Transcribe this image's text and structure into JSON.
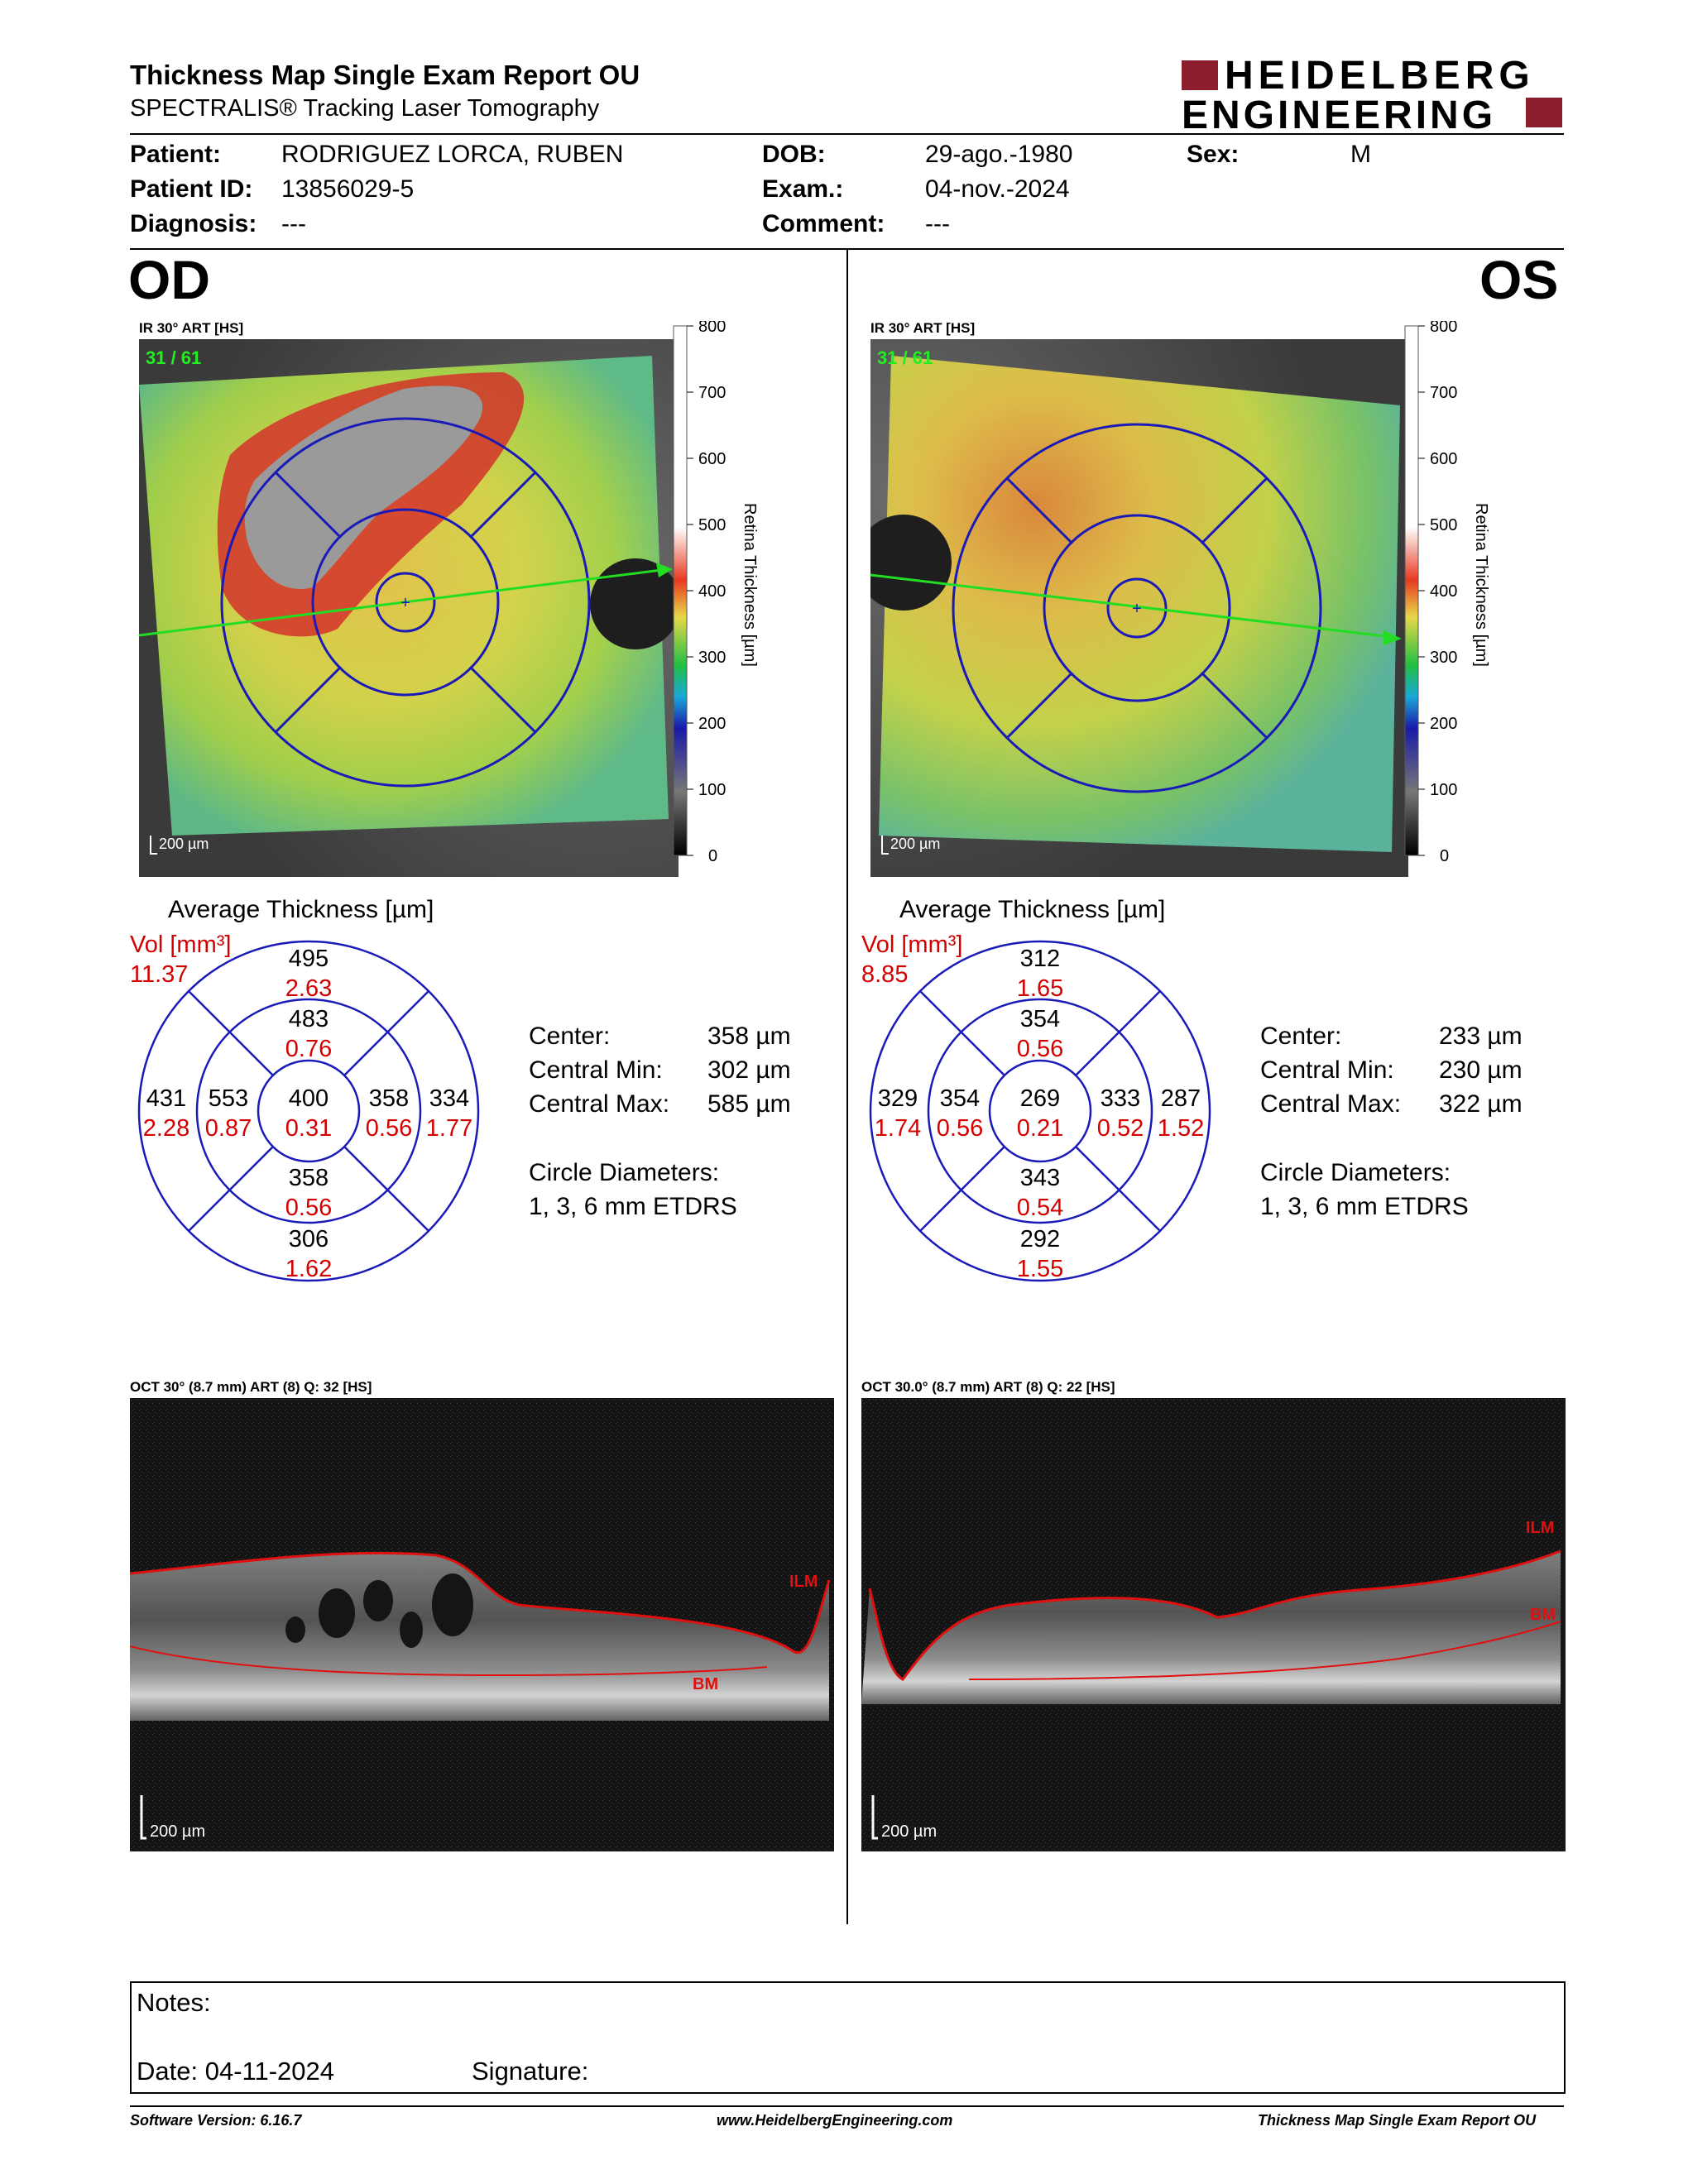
{
  "header": {
    "title": "Thickness Map Single Exam Report OU",
    "subtitle": "SPECTRALIS® Tracking Laser Tomography",
    "logo_line1": "HEIDELBERG",
    "logo_line2": "ENGINEERING"
  },
  "patient": {
    "patient_label": "Patient:",
    "patient_value": "RODRIGUEZ LORCA, RUBEN",
    "id_label": "Patient ID:",
    "id_value": "13856029-5",
    "diagnosis_label": "Diagnosis:",
    "diagnosis_value": "---",
    "dob_label": "DOB:",
    "dob_value": "29-ago.-1980",
    "exam_label": "Exam.:",
    "exam_value": "04-nov.-2024",
    "comment_label": "Comment:",
    "comment_value": "---",
    "sex_label": "Sex:",
    "sex_value": "M"
  },
  "colorbar": {
    "label": "Retina Thickness [µm]",
    "ticks": [
      "800",
      "700",
      "600",
      "500",
      "400",
      "300",
      "200",
      "100",
      "0"
    ]
  },
  "od": {
    "eye": "OD",
    "ir_caption": "IR 30° ART [HS]",
    "frame_counter": "31 / 61",
    "scale": "200 µm",
    "avg_title": "Average Thickness [µm]",
    "vol_label": "Vol [mm³]",
    "vol_total": "11.37",
    "etdrs": {
      "outer_sup": {
        "t": "495",
        "v": "2.63"
      },
      "inner_sup": {
        "t": "483",
        "v": "0.76"
      },
      "outer_left": {
        "t": "431",
        "v": "2.28"
      },
      "inner_left": {
        "t": "553",
        "v": "0.87"
      },
      "center": {
        "t": "400",
        "v": "0.31"
      },
      "inner_right": {
        "t": "358",
        "v": "0.56"
      },
      "outer_right": {
        "t": "334",
        "v": "1.77"
      },
      "inner_inf": {
        "t": "358",
        "v": "0.56"
      },
      "outer_inf": {
        "t": "306",
        "v": "1.62"
      }
    },
    "center_label": "Center:",
    "center_value": "358 µm",
    "cmin_label": "Central Min:",
    "cmin_value": "302 µm",
    "cmax_label": "Central Max:",
    "cmax_value": "585 µm",
    "circle_label": "Circle Diameters:",
    "circle_value": "1, 3, 6 mm ETDRS",
    "oct_caption": "OCT 30° (8.7 mm) ART (8) Q: 32 [HS]",
    "ilm": "ILM",
    "bm": "BM",
    "oct_scale": "200 µm"
  },
  "os": {
    "eye": "OS",
    "ir_caption": "IR 30° ART [HS]",
    "frame_counter": "31 / 61",
    "scale": "200 µm",
    "avg_title": "Average Thickness [µm]",
    "vol_label": "Vol [mm³]",
    "vol_total": "8.85",
    "etdrs": {
      "outer_sup": {
        "t": "312",
        "v": "1.65"
      },
      "inner_sup": {
        "t": "354",
        "v": "0.56"
      },
      "outer_left": {
        "t": "329",
        "v": "1.74"
      },
      "inner_left": {
        "t": "354",
        "v": "0.56"
      },
      "center": {
        "t": "269",
        "v": "0.21"
      },
      "inner_right": {
        "t": "333",
        "v": "0.52"
      },
      "outer_right": {
        "t": "287",
        "v": "1.52"
      },
      "inner_inf": {
        "t": "343",
        "v": "0.54"
      },
      "outer_inf": {
        "t": "292",
        "v": "1.55"
      }
    },
    "center_label": "Center:",
    "center_value": "233 µm",
    "cmin_label": "Central Min:",
    "cmin_value": "230 µm",
    "cmax_label": "Central Max:",
    "cmax_value": "322 µm",
    "circle_label": "Circle Diameters:",
    "circle_value": "1, 3, 6 mm ETDRS",
    "oct_caption": "OCT 30.0° (8.7 mm) ART (8) Q: 22 [HS]",
    "ilm": "ILM",
    "bm": "BM",
    "oct_scale": "200 µm"
  },
  "notes": {
    "notes_label": "Notes:",
    "date_label": "Date: 04-11-2024",
    "signature_label": "Signature:"
  },
  "footer": {
    "software": "Software Version: 6.16.7",
    "website": "www.HeidelbergEngineering.com",
    "report": "Thickness Map Single Exam Report OU"
  }
}
